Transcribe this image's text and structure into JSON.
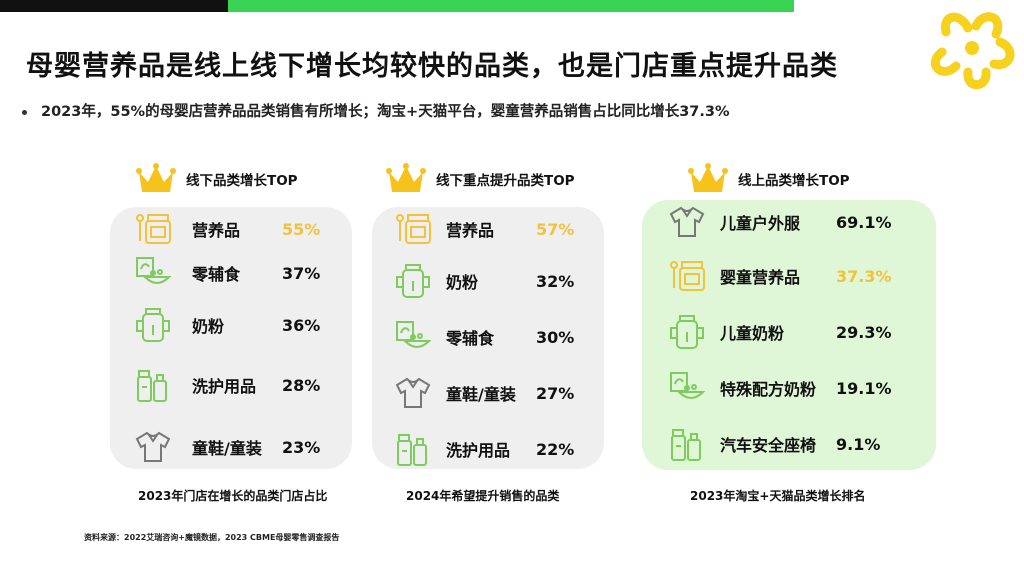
{
  "title": "母婴营养品是线上线下增长均较快的品类，也是门店重点提升品类",
  "bullet": "2023年，55%的母婴店营养品品类销售有所增长；淘宝+天猫平台，婴童营养品销售占比同比增长37.3%",
  "colors": {
    "accent_green": "#39d353",
    "highlight_yellow": "#f2c23c",
    "card_grey": "#efefef",
    "card_green": "#dff7d6"
  },
  "cards": [
    {
      "header": "线下品类增长TOP",
      "caption": "2023年门店在增长的品类门店占比",
      "rows": [
        {
          "icon": "nutrition-jar-icon",
          "name": "营养品",
          "value": "55%",
          "highlight": true
        },
        {
          "icon": "snack-bowl-icon",
          "name": "零辅食",
          "value": "37%",
          "highlight": false
        },
        {
          "icon": "milk-bottle-icon",
          "name": "奶粉",
          "value": "36%",
          "highlight": false
        },
        {
          "icon": "wash-bottles-icon",
          "name": "洗护用品",
          "value": "28%",
          "highlight": false
        },
        {
          "icon": "kids-shirt-icon",
          "name": "童鞋/童装",
          "value": "23%",
          "highlight": false
        }
      ]
    },
    {
      "header": "线下重点提升品类TOP",
      "caption": "2024年希望提升销售的品类",
      "rows": [
        {
          "icon": "nutrition-jar-icon",
          "name": "营养品",
          "value": "57%",
          "highlight": true
        },
        {
          "icon": "milk-bottle-icon",
          "name": "奶粉",
          "value": "32%",
          "highlight": false
        },
        {
          "icon": "snack-bowl-icon",
          "name": "零辅食",
          "value": "30%",
          "highlight": false
        },
        {
          "icon": "kids-shirt-icon",
          "name": "童鞋/童装",
          "value": "27%",
          "highlight": false
        },
        {
          "icon": "wash-bottles-icon",
          "name": "洗护用品",
          "value": "22%",
          "highlight": false
        }
      ]
    },
    {
      "header": "线上品类增长TOP",
      "caption": "2023年淘宝+天猫品类增长排名",
      "rows": [
        {
          "icon": "kids-shirt-icon",
          "name": "儿童户外服",
          "value": "69.1%",
          "highlight": false
        },
        {
          "icon": "nutrition-jar-icon",
          "name": "婴童营养品",
          "value": "37.3%",
          "highlight": true
        },
        {
          "icon": "milk-bottle-icon",
          "name": "儿童奶粉",
          "value": "29.3%",
          "highlight": false
        },
        {
          "icon": "snack-bowl-icon",
          "name": "特殊配方奶粉",
          "value": "19.1%",
          "highlight": false
        },
        {
          "icon": "wash-bottles-icon",
          "name": "汽车安全座椅",
          "value": "9.1%",
          "highlight": false
        }
      ]
    }
  ],
  "source": "资料来源：2022艾瑞咨询+魔镜数据，2023 CBME母婴零售调查报告"
}
